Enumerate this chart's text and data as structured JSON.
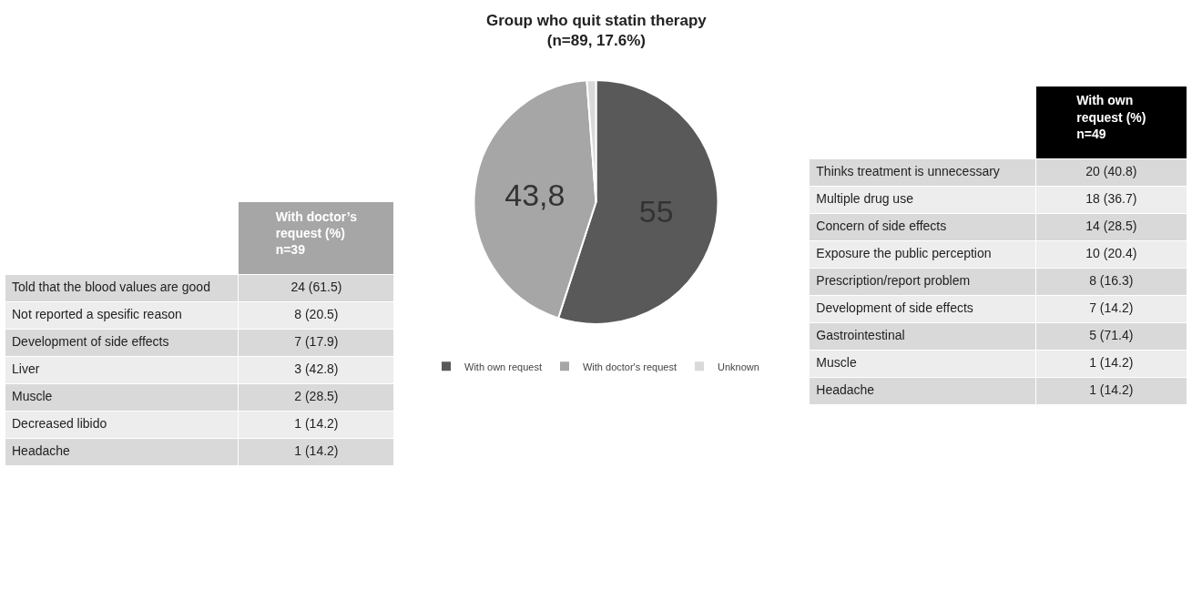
{
  "chart_data": [
    {
      "type": "other",
      "title": "With doctor’s\nrequest (%)\nn=39",
      "categories": [
        "Told that the blood values are good",
        "Not reported a spesific reason",
        "Development of side effects",
        "Liver",
        "Muscle",
        "Decreased libido",
        "Headache"
      ],
      "value_labels": [
        "24 (61.5)",
        "8 (20.5)",
        "7 (17.9)",
        "3 (42.8)",
        "2 (28.5)",
        "1 (14.2)",
        "1 (14.2)"
      ]
    },
    {
      "type": "pie",
      "title": "Group who quit statin therapy\n(n=89, 17.6%)",
      "categories": [
        "With own request",
        "With doctor's request",
        "Unknown"
      ],
      "values": [
        55,
        43.8,
        1.2
      ],
      "value_labels": [
        "55",
        "43,8",
        null
      ],
      "colors": [
        "#595959",
        "#a6a6a6",
        "#d9d9d9"
      ],
      "legend": "bottom"
    },
    {
      "type": "other",
      "title": "With own\nrequest (%)\nn=49",
      "categories": [
        "Thinks treatment is unnecessary",
        "Multiple drug use",
        "Concern of side effects",
        "Exposure the public perception",
        "Prescription/report problem",
        "Development of side effects",
        "Gastrointestinal",
        "Muscle",
        "Headache"
      ],
      "value_labels": [
        "20 (40.8)",
        "18 (36.7)",
        "14 (28.5)",
        "10 (20.4)",
        "8 (16.3)",
        "7 (14.2)",
        "5 (71.4)",
        "1 (14.2)",
        "1 (14.2)"
      ]
    }
  ]
}
